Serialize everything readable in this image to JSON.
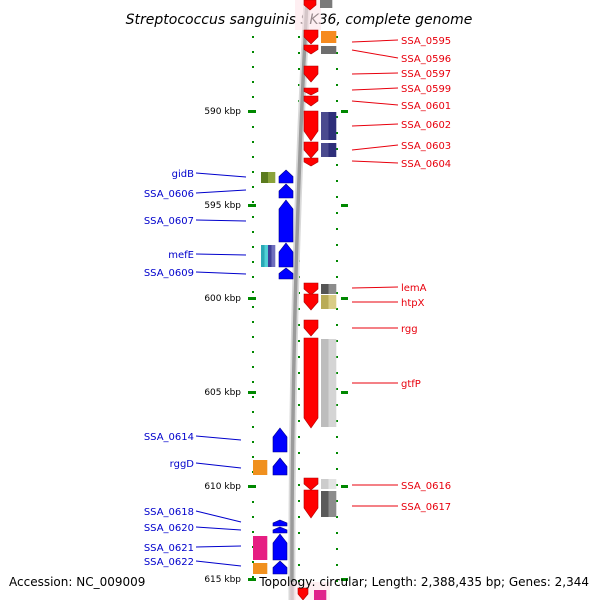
{
  "title": "Streptococcus sanguinis SK36, complete genome",
  "footer": {
    "accession": "Accession: NC_009009",
    "summary": "Topology: circular; Length: 2,388,435 bp; Genes: 2,344"
  },
  "colors": {
    "forward": "#ff0000",
    "reverse": "#0000ff",
    "label_forward": "#e8000d",
    "label_reverse": "#0000cc",
    "ruler": "#008800",
    "backbone": "#9a9a9a"
  },
  "ruler": {
    "unit": "kbp",
    "ticks": [
      {
        "label": "590 kbp"
      },
      {
        "label": "595 kbp"
      },
      {
        "label": "600 kbp"
      },
      {
        "label": "605 kbp"
      },
      {
        "label": "610 kbp"
      },
      {
        "label": "615 kbp"
      }
    ]
  },
  "forward_genes": [
    {
      "name": "SSA_0595"
    },
    {
      "name": "SSA_0596"
    },
    {
      "name": "SSA_0597"
    },
    {
      "name": "SSA_0599"
    },
    {
      "name": "SSA_0601"
    },
    {
      "name": "SSA_0602"
    },
    {
      "name": "SSA_0603"
    },
    {
      "name": "SSA_0604"
    },
    {
      "name": "lemA"
    },
    {
      "name": "htpX"
    },
    {
      "name": "rgg"
    },
    {
      "name": "gtfP"
    },
    {
      "name": "SSA_0616"
    },
    {
      "name": "SSA_0617"
    }
  ],
  "reverse_genes": [
    {
      "name": "gidB"
    },
    {
      "name": "SSA_0606"
    },
    {
      "name": "SSA_0607"
    },
    {
      "name": "mefE"
    },
    {
      "name": "SSA_0609"
    },
    {
      "name": "SSA_0614"
    },
    {
      "name": "rggD"
    },
    {
      "name": "SSA_0618"
    },
    {
      "name": "SSA_0620"
    },
    {
      "name": "SSA_0621"
    },
    {
      "name": "SSA_0622"
    }
  ]
}
